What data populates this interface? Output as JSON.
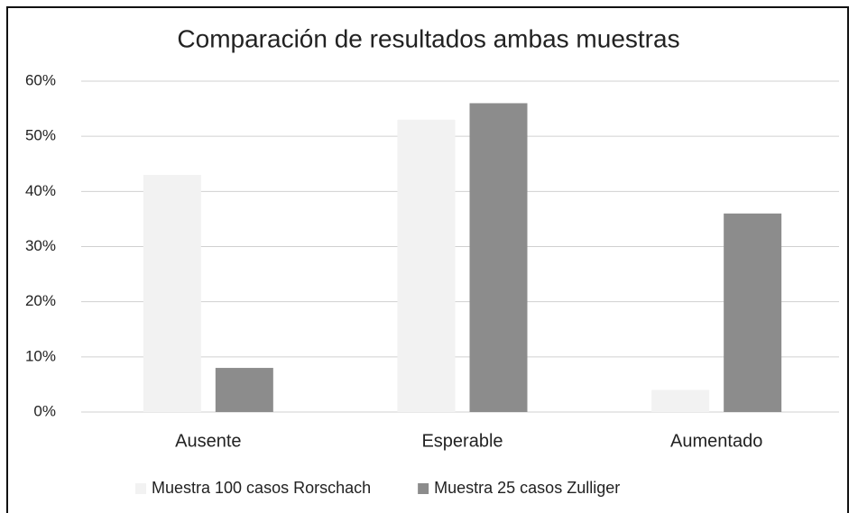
{
  "chart_data": {
    "type": "bar",
    "title": "Comparación de resultados ambas muestras",
    "categories": [
      "Ausente",
      "Esperable",
      "Aumentado"
    ],
    "series": [
      {
        "name": "Muestra 100 casos Rorschach",
        "color": "#f2f2f2",
        "values": [
          43,
          53,
          4
        ]
      },
      {
        "name": "Muestra 25 casos Zulliger",
        "color": "#8c8c8c",
        "values": [
          8,
          56,
          36
        ]
      }
    ],
    "ylim": [
      0,
      60
    ],
    "yticks": [
      {
        "value": 0,
        "label": "0%"
      },
      {
        "value": 10,
        "label": "10%"
      },
      {
        "value": 20,
        "label": "20%"
      },
      {
        "value": 30,
        "label": "30%"
      },
      {
        "value": 40,
        "label": "40%"
      },
      {
        "value": 50,
        "label": "50%"
      },
      {
        "value": 60,
        "label": "60%"
      }
    ],
    "grid": true,
    "legend": "bottom"
  }
}
